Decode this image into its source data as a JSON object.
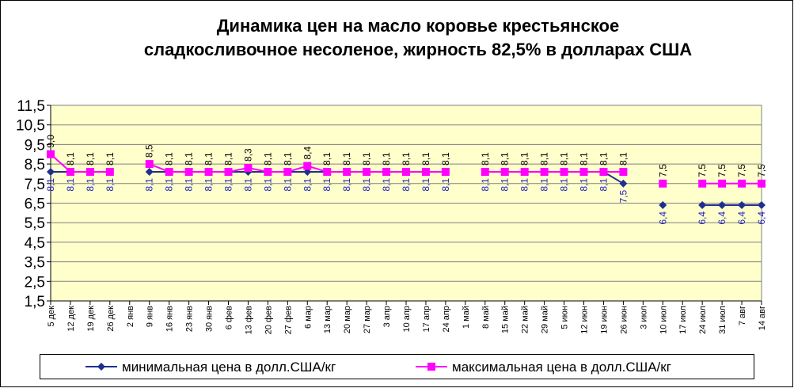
{
  "chart_data": {
    "type": "line",
    "title": [
      "Динамика цен на масло коровье крестьянское",
      "сладкосливочное несоленое, жирность  82,5%  в долларах США"
    ],
    "categories": [
      "5 дек",
      "12 дек",
      "19 дек",
      "26 дек",
      "2 янв",
      "9 янв",
      "16 янв",
      "23 янв",
      "30 янв",
      "6 фев",
      "13 фев",
      "20 фев",
      "27 фев",
      "6 мар",
      "13 мар",
      "20 мар",
      "27 мар",
      "3 апр",
      "10 апр",
      "17 апр",
      "24 апр",
      "1 май",
      "8 май",
      "15 май",
      "22 май",
      "29 май",
      "5 июн",
      "12 июн",
      "19 июн",
      "26 июн",
      "3 июл",
      "10 июл",
      "17 июл",
      "24 июл",
      "31 июл",
      "7 авг",
      "14 авг"
    ],
    "series": [
      {
        "name": "минимальная  цена  в долл.США/кг",
        "color": "#1f2f8f",
        "marker": "diamond",
        "label_color": "#2020c0",
        "values": [
          8.1,
          8.1,
          8.1,
          8.1,
          null,
          8.1,
          8.1,
          8.1,
          8.1,
          8.1,
          8.1,
          8.1,
          8.1,
          8.1,
          8.1,
          8.1,
          8.1,
          8.1,
          8.1,
          8.1,
          8.1,
          null,
          8.1,
          8.1,
          8.1,
          8.1,
          8.1,
          8.1,
          8.1,
          7.5,
          null,
          6.4,
          null,
          6.4,
          6.4,
          6.4,
          6.4
        ],
        "value_labels": [
          "8,1",
          "8,1",
          "8,1",
          "8,1",
          null,
          "8,1",
          "8,1",
          "8,1",
          "8,1",
          "8,1",
          "8,1",
          "8,1",
          "8,1",
          "8,1",
          "8,1",
          "8,1",
          "8,1",
          "8,1",
          "8,1",
          "8,1",
          "8,1",
          null,
          "8,1",
          "8,1",
          "8,1",
          "8,1",
          "8,1",
          "8,1",
          "8,1",
          "7,5",
          null,
          "6,4",
          null,
          "6,4",
          "6,4",
          "6,4",
          "6,4"
        ]
      },
      {
        "name": "максимальная  цена  в долл.США/кг",
        "color": "#ff00ff",
        "marker": "square",
        "label_color": "#000000",
        "values": [
          9.0,
          8.1,
          8.1,
          8.1,
          null,
          8.5,
          8.1,
          8.1,
          8.1,
          8.1,
          8.3,
          8.1,
          8.1,
          8.4,
          8.1,
          8.1,
          8.1,
          8.1,
          8.1,
          8.1,
          8.1,
          null,
          8.1,
          8.1,
          8.1,
          8.1,
          8.1,
          8.1,
          8.1,
          8.1,
          null,
          7.5,
          null,
          7.5,
          7.5,
          7.5,
          7.5
        ],
        "value_labels": [
          "9,0",
          "8,1",
          "8,1",
          "8,1",
          null,
          "8,5",
          "8,1",
          "8,1",
          "8,1",
          "8,1",
          "8,3",
          "8,1",
          "8,1",
          "8,4",
          "8,1",
          "8,1",
          "8,1",
          "8,1",
          "8,1",
          "8,1",
          "8,1",
          null,
          "8,1",
          "8,1",
          "8,1",
          "8,1",
          "8,1",
          "8,1",
          "8,1",
          "8,1",
          null,
          "7,5",
          null,
          "7,5",
          "7,5",
          "7,5",
          "7,5"
        ]
      }
    ],
    "ylim": [
      1.5,
      11.5
    ],
    "yticks": [
      {
        "value": 1.5,
        "label": "1,5"
      },
      {
        "value": 2.5,
        "label": "2,5"
      },
      {
        "value": 3.5,
        "label": "3,5"
      },
      {
        "value": 4.5,
        "label": "4,5"
      },
      {
        "value": 5.5,
        "label": "5,5"
      },
      {
        "value": 6.5,
        "label": "6,5"
      },
      {
        "value": 7.5,
        "label": "7,5"
      },
      {
        "value": 8.5,
        "label": "8,5"
      },
      {
        "value": 9.5,
        "label": "9,5"
      },
      {
        "value": 10.5,
        "label": "10,5"
      },
      {
        "value": 11.5,
        "label": "11,5"
      }
    ],
    "grid": true,
    "legend": "bottom",
    "plot_background": "#ffffcc"
  }
}
